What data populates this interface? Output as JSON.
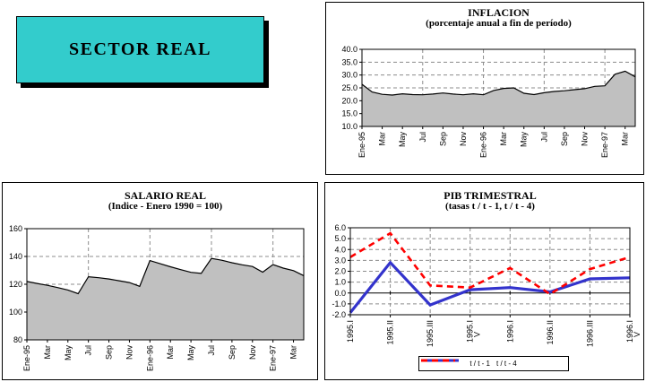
{
  "window": {
    "background": "#FFFFFF"
  },
  "sector_box": {
    "label": "SECTOR REAL",
    "fill_color": "#33CCCC",
    "border_color": "#000000",
    "shadow_color": "#000000"
  },
  "chart_data": [
    {
      "id": "inflacion",
      "type": "area",
      "title": "INFLACION",
      "subtitle": "(porcentaje anual a fin de período)",
      "x_tick_labels": [
        "Ene-95",
        "Mar",
        "May",
        "Jul",
        "Sep",
        "Nov",
        "Ene-96",
        "Mar",
        "May",
        "Jul",
        "Sep",
        "Nov",
        "Ene-97",
        "Mar"
      ],
      "x_tick_every": 2,
      "values": [
        26.4,
        23.4,
        22.5,
        22.2,
        22.7,
        22.4,
        22.3,
        22.6,
        23.0,
        22.6,
        22.3,
        22.7,
        22.3,
        24.0,
        24.8,
        25.0,
        22.9,
        22.4,
        23.1,
        23.6,
        23.9,
        24.3,
        24.7,
        25.6,
        25.8,
        30.3,
        31.5,
        29.3
      ],
      "ylim": [
        10,
        40
      ],
      "y_ticks": [
        "10.0",
        "15.0",
        "20.0",
        "25.0",
        "30.0",
        "35.0",
        "40.0"
      ],
      "v_grid_month_indices": [
        6,
        12,
        18,
        24
      ],
      "area_fill": "#C0C0C0",
      "line_color": "#000000",
      "grid_style": "dashed",
      "legend": "none"
    },
    {
      "id": "salario",
      "type": "area",
      "title": "SALARIO REAL",
      "subtitle": "(Indice - Enero 1990 = 100)",
      "x_tick_labels": [
        "Ene-95",
        "Mar",
        "May",
        "Jul",
        "Sep",
        "Nov",
        "Ene-96",
        "Mar",
        "May",
        "Jul",
        "Sep",
        "Nov",
        "Ene-97",
        "Mar"
      ],
      "x_tick_every": 2,
      "values": [
        122.0,
        120.6,
        119.2,
        117.6,
        115.9,
        113.2,
        125.4,
        124.7,
        123.8,
        122.5,
        121.2,
        118.5,
        137.0,
        134.8,
        132.6,
        130.5,
        128.6,
        127.8,
        138.6,
        137.3,
        135.5,
        134.0,
        132.8,
        128.7,
        134.2,
        131.6,
        129.8,
        126.2
      ],
      "ylim": [
        80,
        160
      ],
      "y_ticks": [
        "80",
        "100",
        "120",
        "140",
        "160"
      ],
      "v_grid_month_indices": [
        6,
        12,
        18,
        24
      ],
      "area_fill": "#C0C0C0",
      "line_color": "#000000",
      "grid_style": "dashed",
      "legend": "none"
    },
    {
      "id": "pib",
      "type": "line",
      "title": "PIB TRIMESTRAL",
      "subtitle": "(tasas t / t - 1, t / t - 4)",
      "categories": [
        "1995.I",
        "1995.II",
        "1995.III",
        "1995.IV",
        "1996.I",
        "1996.II",
        "1996.III",
        "1996.IV"
      ],
      "series": [
        {
          "name": "t / t - 1",
          "color": "#3333CC",
          "dash": "solid",
          "values": [
            -1.8,
            2.8,
            -1.1,
            0.3,
            0.5,
            0.1,
            1.3,
            1.4
          ]
        },
        {
          "name": "t / t - 4",
          "color": "#FF0000",
          "dash": "dashed",
          "values": [
            3.3,
            5.5,
            0.7,
            0.5,
            2.3,
            -0.1,
            2.2,
            3.3
          ]
        }
      ],
      "ylim": [
        -2,
        6
      ],
      "y_ticks": [
        "-2.0",
        "-1.0",
        "0.0",
        "1.0",
        "2.0",
        "3.0",
        "4.0",
        "5.0",
        "6.0"
      ],
      "zero_line": true,
      "grid_style": "dashed",
      "legend_position": "bottom"
    }
  ]
}
